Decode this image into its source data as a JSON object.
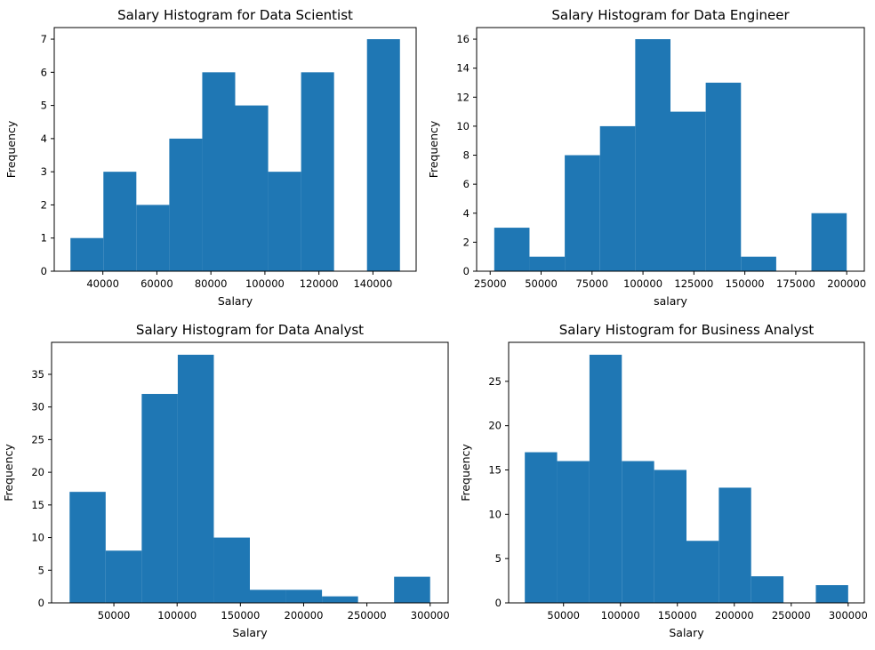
{
  "chart_data": [
    {
      "type": "bar",
      "title": "Salary Histogram for Data Scientist",
      "xlabel": "Salary",
      "ylabel": "Frequency",
      "bins": [
        {
          "x0": 28000,
          "x1": 40200,
          "value": 1
        },
        {
          "x0": 40200,
          "x1": 52400,
          "value": 3
        },
        {
          "x0": 52400,
          "x1": 64600,
          "value": 2
        },
        {
          "x0": 64600,
          "x1": 76800,
          "value": 4
        },
        {
          "x0": 76800,
          "x1": 89000,
          "value": 6
        },
        {
          "x0": 89000,
          "x1": 101200,
          "value": 5
        },
        {
          "x0": 101200,
          "x1": 113400,
          "value": 3
        },
        {
          "x0": 113400,
          "x1": 125600,
          "value": 6
        },
        {
          "x0": 125600,
          "x1": 137800,
          "value": 0
        },
        {
          "x0": 137800,
          "x1": 150000,
          "value": 7
        }
      ],
      "xlim": [
        22000,
        156000
      ],
      "ylim": [
        0,
        7.35
      ],
      "xticks": [
        40000,
        60000,
        80000,
        100000,
        120000,
        140000
      ],
      "yticks": [
        0,
        1,
        2,
        3,
        4,
        5,
        6,
        7
      ],
      "color": "#1f77b4"
    },
    {
      "type": "bar",
      "title": "Salary Histogram for Data Engineer",
      "xlabel": "salary",
      "ylabel": "Frequency",
      "bins": [
        {
          "x0": 27000,
          "x1": 44300,
          "value": 3
        },
        {
          "x0": 44300,
          "x1": 61600,
          "value": 1
        },
        {
          "x0": 61600,
          "x1": 78900,
          "value": 8
        },
        {
          "x0": 78900,
          "x1": 96200,
          "value": 10
        },
        {
          "x0": 96200,
          "x1": 113500,
          "value": 16
        },
        {
          "x0": 113500,
          "x1": 130800,
          "value": 11
        },
        {
          "x0": 130800,
          "x1": 148100,
          "value": 13
        },
        {
          "x0": 148100,
          "x1": 165400,
          "value": 1
        },
        {
          "x0": 165400,
          "x1": 182700,
          "value": 0
        },
        {
          "x0": 182700,
          "x1": 200000,
          "value": 4
        }
      ],
      "xlim": [
        18350,
        208650
      ],
      "ylim": [
        0,
        16.8
      ],
      "xticks": [
        25000,
        50000,
        75000,
        100000,
        125000,
        150000,
        175000,
        200000
      ],
      "yticks": [
        0,
        2,
        4,
        6,
        8,
        10,
        12,
        14,
        16
      ],
      "color": "#1f77b4"
    },
    {
      "type": "bar",
      "title": "Salary Histogram for Data Analyst",
      "xlabel": "Salary",
      "ylabel": "Frequency",
      "bins": [
        {
          "x0": 15000,
          "x1": 43500,
          "value": 17
        },
        {
          "x0": 43500,
          "x1": 72000,
          "value": 8
        },
        {
          "x0": 72000,
          "x1": 100500,
          "value": 32
        },
        {
          "x0": 100500,
          "x1": 129000,
          "value": 38
        },
        {
          "x0": 129000,
          "x1": 157500,
          "value": 10
        },
        {
          "x0": 157500,
          "x1": 186000,
          "value": 2
        },
        {
          "x0": 186000,
          "x1": 214500,
          "value": 2
        },
        {
          "x0": 214500,
          "x1": 243000,
          "value": 1
        },
        {
          "x0": 243000,
          "x1": 271500,
          "value": 0
        },
        {
          "x0": 271500,
          "x1": 300000,
          "value": 4
        }
      ],
      "xlim": [
        750,
        314250
      ],
      "ylim": [
        0,
        39.9
      ],
      "xticks": [
        50000,
        100000,
        150000,
        200000,
        250000,
        300000
      ],
      "yticks": [
        0,
        5,
        10,
        15,
        20,
        25,
        30,
        35
      ],
      "color": "#1f77b4"
    },
    {
      "type": "bar",
      "title": "Salary Histogram for Business Analyst",
      "xlabel": "Salary",
      "ylabel": "Frequency",
      "bins": [
        {
          "x0": 16000,
          "x1": 44400,
          "value": 17
        },
        {
          "x0": 44400,
          "x1": 72800,
          "value": 16
        },
        {
          "x0": 72800,
          "x1": 101200,
          "value": 28
        },
        {
          "x0": 101200,
          "x1": 129600,
          "value": 16
        },
        {
          "x0": 129600,
          "x1": 158000,
          "value": 15
        },
        {
          "x0": 158000,
          "x1": 186400,
          "value": 7
        },
        {
          "x0": 186400,
          "x1": 214800,
          "value": 13
        },
        {
          "x0": 214800,
          "x1": 243200,
          "value": 3
        },
        {
          "x0": 243200,
          "x1": 271600,
          "value": 0
        },
        {
          "x0": 271600,
          "x1": 300000,
          "value": 2
        }
      ],
      "xlim": [
        1800,
        314200
      ],
      "ylim": [
        0,
        29.4
      ],
      "xticks": [
        50000,
        100000,
        150000,
        200000,
        250000,
        300000
      ],
      "yticks": [
        0,
        5,
        10,
        15,
        20,
        25
      ],
      "color": "#1f77b4"
    }
  ]
}
